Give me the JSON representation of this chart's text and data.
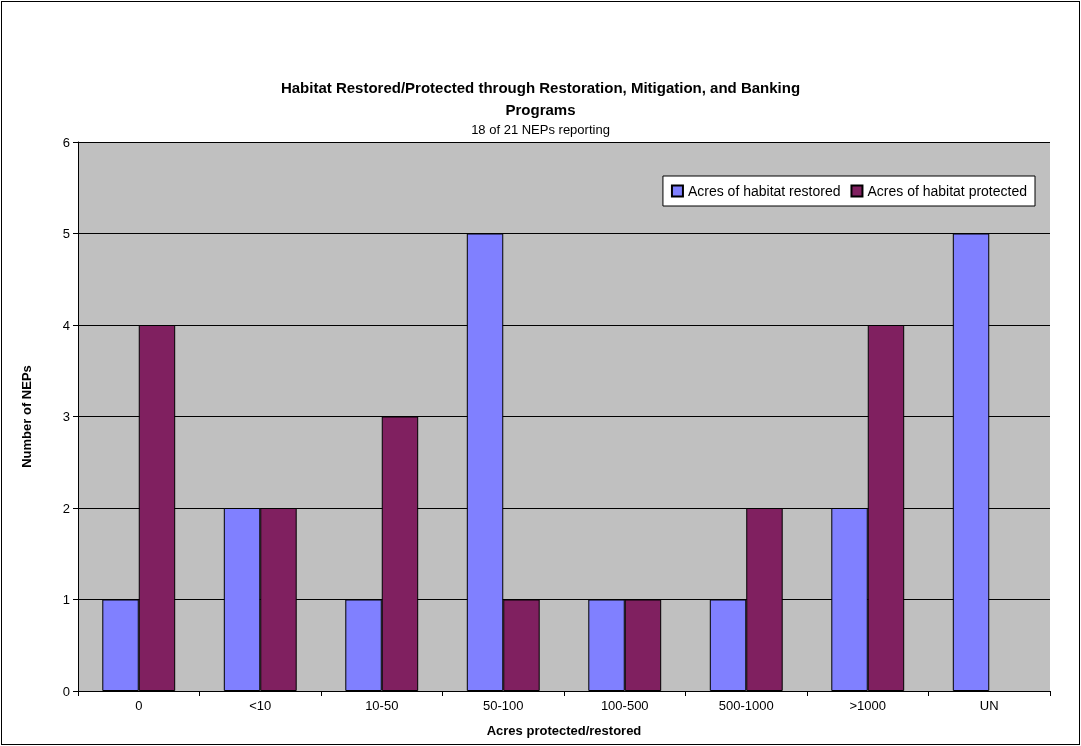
{
  "chart_data": {
    "type": "bar",
    "title": "Habitat Restored/Protected through Restoration, Mitigation, and Banking\nPrograms",
    "subtitle": "18 of 21 NEPs reporting",
    "xlabel": "Acres protected/restored",
    "ylabel": "Number of NEPs",
    "categories": [
      "0",
      "<10",
      "10-50",
      "50-100",
      "100-500",
      "500-1000",
      ">1000",
      "UN"
    ],
    "series": [
      {
        "name": "Acres of habitat restored",
        "color": "#8080ff",
        "values": [
          1,
          2,
          1,
          5,
          1,
          1,
          2,
          5
        ]
      },
      {
        "name": "Acres of habitat protected",
        "color": "#802060",
        "values": [
          4,
          2,
          3,
          1,
          1,
          2,
          4,
          null
        ]
      }
    ],
    "ylim": [
      0,
      6
    ],
    "yticks": [
      0,
      1,
      2,
      3,
      4,
      5,
      6
    ],
    "grid": "y",
    "legend": "top right"
  }
}
